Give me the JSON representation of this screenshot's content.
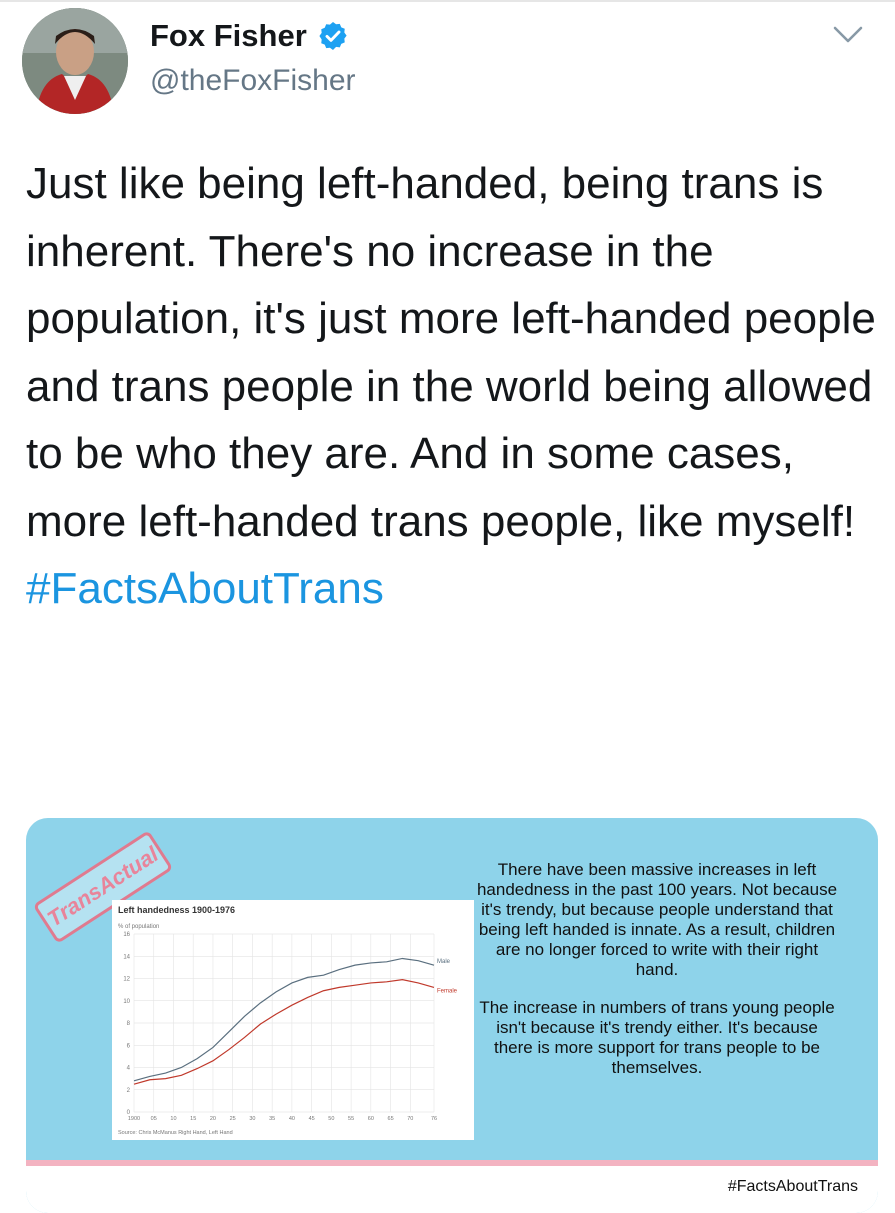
{
  "tweet": {
    "display_name": "Fox Fisher",
    "handle": "@theFoxFisher",
    "text": "Just like being left-handed, being trans is inherent. There's no increase in the population, it's just more left-handed people and trans people in the world being allowed to be who they are. And in some cases, more left-handed trans people, like myself!",
    "hashtag": "#FactsAboutTrans",
    "verified": true
  },
  "icons": {
    "verified": "verified-badge-icon",
    "more": "chevron-down-icon"
  },
  "colors": {
    "link": "#1b95e0",
    "verified": "#1da1f2",
    "card_bg": "#8ed3ea",
    "male_line": "#5a6f7f",
    "female_line": "#c0392b"
  },
  "card": {
    "stamp": "TransActual",
    "paragraphs": [
      "There have been massive increases in left handedness in the past 100 years. Not because it's trendy, but because people understand that being left handed is innate. As a result, children are no longer forced to write with their right hand.",
      "The increase in numbers of trans young people isn't because it's trendy either. It's because there is more support for trans people to be themselves."
    ],
    "hashtag": "#FactsAboutTrans"
  },
  "chart_data": {
    "type": "line",
    "title": "Left handedness 1900-1976",
    "ylabel": "% of population",
    "source": "Source: Chris McManus Right Hand, Left Hand",
    "ylim": [
      0,
      16
    ],
    "yticks": [
      0,
      2,
      4,
      6,
      8,
      10,
      12,
      14,
      16
    ],
    "xticks": [
      "1900",
      "05",
      "10",
      "15",
      "20",
      "25",
      "30",
      "35",
      "40",
      "45",
      "50",
      "55",
      "60",
      "65",
      "70",
      "76"
    ],
    "x": [
      1900,
      1904,
      1908,
      1912,
      1916,
      1920,
      1924,
      1928,
      1932,
      1936,
      1940,
      1944,
      1948,
      1952,
      1956,
      1960,
      1964,
      1968,
      1972,
      1976
    ],
    "series": [
      {
        "name": "Male",
        "values": [
          2.8,
          3.2,
          3.5,
          4.0,
          4.8,
          5.8,
          7.2,
          8.6,
          9.8,
          10.8,
          11.6,
          12.1,
          12.3,
          12.8,
          13.2,
          13.4,
          13.5,
          13.8,
          13.6,
          13.2
        ]
      },
      {
        "name": "Female",
        "values": [
          2.5,
          2.9,
          3.0,
          3.3,
          3.9,
          4.6,
          5.6,
          6.7,
          7.9,
          8.8,
          9.6,
          10.3,
          10.9,
          11.2,
          11.4,
          11.6,
          11.7,
          11.9,
          11.6,
          11.2
        ]
      }
    ]
  }
}
